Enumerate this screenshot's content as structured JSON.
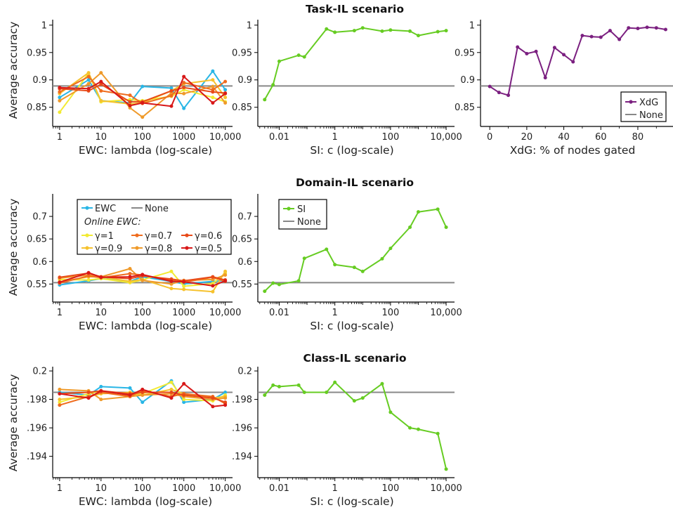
{
  "colors": {
    "EWC": "#29b6e6",
    "None": "#888888",
    "SI": "#66cc22",
    "XdG": "#7b2080",
    "gamma=1": "#f2ea32",
    "gamma=0.9": "#f6c22e",
    "gamma=0.8": "#ef9a2a",
    "gamma=0.7": "#ef6c1e",
    "gamma=0.6": "#e84a18",
    "gamma=0.5": "#d81818"
  },
  "rows": [
    {
      "title": "Task-IL scenario",
      "ylabel": "Average accuracy"
    },
    {
      "title": "Domain-IL scenario",
      "ylabel": "Average accuracy"
    },
    {
      "title": "Class-IL scenario",
      "ylabel": "Average accuracy"
    }
  ],
  "legends": {
    "ewc": {
      "ewc_label": "EWC",
      "none_label": "None",
      "online_label": "Online EWC:",
      "gammas": [
        "γ=1",
        "γ=0.7",
        "γ=0.6",
        "γ=0.9",
        "γ=0.8",
        "γ=0.5"
      ]
    },
    "si": {
      "si_label": "SI",
      "none_label": "None"
    },
    "xdg": {
      "xdg_label": "XdG",
      "none_label": "None"
    }
  },
  "chart_data": [
    {
      "id": "task-ewc",
      "type": "line",
      "xscale": "log",
      "xlabel": "EWC: lambda (log-scale)",
      "ylabel": "Average accuracy",
      "xlim": [
        0.68,
        15000
      ],
      "ylim": [
        0.815,
        1.01
      ],
      "xticks": [
        1,
        10,
        100,
        1000,
        10000
      ],
      "xticklabels": [
        "1",
        "10",
        "100",
        "1000",
        "10,000"
      ],
      "yticks": [
        0.85,
        0.9,
        0.95,
        1
      ],
      "yticklabels": [
        "0.85",
        "0.9",
        "0.95",
        "1"
      ],
      "baseline": 0.889,
      "x": [
        1,
        5,
        10,
        50,
        100,
        500,
        1000,
        5000,
        10000
      ],
      "series": [
        {
          "key": "EWC",
          "values": [
            0.868,
            0.9,
            0.862,
            0.858,
            0.888,
            0.885,
            0.848,
            0.916,
            0.882
          ]
        },
        {
          "key": "gamma=1",
          "values": [
            0.841,
            0.912,
            0.86,
            0.864,
            0.862,
            0.87,
            0.882,
            0.868,
            0.86
          ]
        },
        {
          "key": "gamma=0.9",
          "values": [
            0.875,
            0.913,
            0.862,
            0.856,
            0.858,
            0.88,
            0.893,
            0.9,
            0.868
          ]
        },
        {
          "key": "gamma=0.8",
          "values": [
            0.862,
            0.893,
            0.913,
            0.849,
            0.832,
            0.876,
            0.875,
            0.888,
            0.858
          ]
        },
        {
          "key": "gamma=0.7",
          "values": [
            0.878,
            0.906,
            0.88,
            0.872,
            0.857,
            0.871,
            0.895,
            0.882,
            0.897
          ]
        },
        {
          "key": "gamma=0.6",
          "values": [
            0.884,
            0.88,
            0.892,
            0.86,
            0.86,
            0.88,
            0.886,
            0.878,
            0.876
          ]
        },
        {
          "key": "gamma=0.5",
          "values": [
            0.886,
            0.884,
            0.897,
            0.853,
            0.858,
            0.852,
            0.906,
            0.858,
            0.875
          ]
        }
      ]
    },
    {
      "id": "task-si",
      "type": "line",
      "xscale": "log",
      "xlabel": "SI: c (log-scale)",
      "ylabel": "",
      "xlim": [
        0.0017,
        20000
      ],
      "ylim": [
        0.815,
        1.01
      ],
      "xticks": [
        0.01,
        1,
        100,
        10000
      ],
      "xticklabels": [
        "0.01",
        "1",
        "100",
        "10,000"
      ],
      "yticks": [
        0.85,
        0.9,
        0.95,
        1
      ],
      "yticklabels": [
        "0.85",
        "0.9",
        "0.95",
        "1"
      ],
      "baseline": 0.889,
      "x": [
        0.003,
        0.006,
        0.01,
        0.05,
        0.08,
        0.5,
        1,
        5,
        10,
        50,
        100,
        500,
        1000,
        5000,
        10000
      ],
      "series": [
        {
          "key": "SI",
          "values": [
            0.864,
            0.891,
            0.934,
            0.945,
            0.942,
            0.993,
            0.987,
            0.99,
            0.995,
            0.989,
            0.991,
            0.989,
            0.981,
            0.988,
            0.99
          ]
        }
      ]
    },
    {
      "id": "task-xdg",
      "type": "line",
      "xscale": "linear",
      "xlabel": "XdG: % of nodes gated",
      "ylabel": "",
      "xlim": [
        -5,
        99
      ],
      "ylim": [
        0.815,
        1.01
      ],
      "xticks": [
        0,
        20,
        40,
        60,
        80
      ],
      "xticklabels": [
        "0",
        "20",
        "40",
        "60",
        "80"
      ],
      "yticks": [
        0.85,
        0.9,
        0.95,
        1
      ],
      "yticklabels": [
        "0.85",
        "0.9",
        "0.95",
        "1"
      ],
      "baseline": 0.889,
      "x": [
        0,
        5,
        10,
        15,
        20,
        25,
        30,
        35,
        40,
        45,
        50,
        55,
        60,
        65,
        70,
        75,
        80,
        85,
        90,
        95
      ],
      "series": [
        {
          "key": "XdG",
          "values": [
            0.888,
            0.877,
            0.872,
            0.96,
            0.948,
            0.952,
            0.904,
            0.959,
            0.946,
            0.933,
            0.981,
            0.979,
            0.978,
            0.99,
            0.974,
            0.995,
            0.994,
            0.996,
            0.995,
            0.992
          ]
        }
      ]
    },
    {
      "id": "domain-ewc",
      "type": "line",
      "xscale": "log",
      "xlabel": "EWC: lambda (log-scale)",
      "ylabel": "Average accuracy",
      "xlim": [
        0.68,
        15000
      ],
      "ylim": [
        0.51,
        0.75
      ],
      "xticks": [
        1,
        10,
        100,
        1000,
        10000
      ],
      "xticklabels": [
        "1",
        "10",
        "100",
        "1000",
        "10,000"
      ],
      "yticks": [
        0.55,
        0.6,
        0.65,
        0.7
      ],
      "yticklabels": [
        "0.55",
        "0.6",
        "0.65",
        "0.7"
      ],
      "baseline": 0.553,
      "x": [
        1,
        5,
        10,
        50,
        100,
        500,
        1000,
        5000,
        10000
      ],
      "series": [
        {
          "key": "EWC",
          "values": [
            0.548,
            0.557,
            0.562,
            0.556,
            0.566,
            0.556,
            0.55,
            0.556,
            0.558
          ]
        },
        {
          "key": "gamma=1",
          "values": [
            0.56,
            0.559,
            0.562,
            0.553,
            0.559,
            0.578,
            0.545,
            0.551,
            0.574
          ]
        },
        {
          "key": "gamma=0.9",
          "values": [
            0.555,
            0.566,
            0.566,
            0.556,
            0.56,
            0.54,
            0.538,
            0.533,
            0.578
          ]
        },
        {
          "key": "gamma=0.8",
          "values": [
            0.563,
            0.57,
            0.566,
            0.584,
            0.558,
            0.55,
            0.558,
            0.56,
            0.57
          ]
        },
        {
          "key": "gamma=0.7",
          "values": [
            0.552,
            0.568,
            0.564,
            0.573,
            0.57,
            0.558,
            0.554,
            0.565,
            0.556
          ]
        },
        {
          "key": "gamma=0.6",
          "values": [
            0.565,
            0.574,
            0.566,
            0.562,
            0.568,
            0.561,
            0.557,
            0.566,
            0.559
          ]
        },
        {
          "key": "gamma=0.5",
          "values": [
            0.554,
            0.575,
            0.565,
            0.566,
            0.571,
            0.556,
            0.555,
            0.546,
            0.557
          ]
        }
      ]
    },
    {
      "id": "domain-si",
      "type": "line",
      "xscale": "log",
      "xlabel": "SI: c (log-scale)",
      "ylabel": "",
      "xlim": [
        0.0017,
        20000
      ],
      "ylim": [
        0.51,
        0.75
      ],
      "xticks": [
        0.01,
        1,
        100,
        10000
      ],
      "xticklabels": [
        "0.01",
        "1",
        "100",
        "10,000"
      ],
      "yticks": [
        0.55,
        0.6,
        0.65,
        0.7
      ],
      "yticklabels": [
        "0.55",
        "0.6",
        "0.65",
        "0.7"
      ],
      "baseline": 0.553,
      "x": [
        0.003,
        0.006,
        0.01,
        0.05,
        0.08,
        0.5,
        1,
        5,
        10,
        50,
        100,
        500,
        1000,
        5000,
        10000
      ],
      "series": [
        {
          "key": "SI",
          "values": [
            0.534,
            0.552,
            0.549,
            0.557,
            0.607,
            0.627,
            0.593,
            0.587,
            0.578,
            0.606,
            0.629,
            0.676,
            0.71,
            0.716,
            0.676
          ]
        }
      ]
    },
    {
      "id": "class-ewc",
      "type": "line",
      "xscale": "log",
      "xlabel": "EWC: lambda (log-scale)",
      "ylabel": "Average accuracy",
      "xlim": [
        0.68,
        15000
      ],
      "ylim": [
        0.1925,
        0.2003
      ],
      "xticks": [
        1,
        10,
        100,
        1000,
        10000
      ],
      "xticklabels": [
        "1",
        "10",
        "100",
        "1000",
        "10,000"
      ],
      "yticks": [
        0.194,
        0.196,
        0.198,
        0.2
      ],
      "yticklabels": [
        ".194",
        ".196",
        ".198",
        "0.2"
      ],
      "baseline": 0.1985,
      "x": [
        1,
        5,
        10,
        50,
        100,
        500,
        1000,
        5000,
        10000
      ],
      "series": [
        {
          "key": "EWC",
          "values": [
            0.1985,
            0.1983,
            0.1989,
            0.1988,
            0.1978,
            0.1993,
            0.1978,
            0.198,
            0.1985
          ]
        },
        {
          "key": "gamma=1",
          "values": [
            0.1978,
            0.1984,
            0.1986,
            0.1983,
            0.1984,
            0.1992,
            0.198,
            0.1979,
            0.1983
          ]
        },
        {
          "key": "gamma=0.9",
          "values": [
            0.198,
            0.1982,
            0.1984,
            0.1985,
            0.1983,
            0.1987,
            0.1984,
            0.1981,
            0.1982
          ]
        },
        {
          "key": "gamma=0.8",
          "values": [
            0.1987,
            0.1986,
            0.198,
            0.1982,
            0.1983,
            0.1984,
            0.1982,
            0.198,
            0.1981
          ]
        },
        {
          "key": "gamma=0.7",
          "values": [
            0.1976,
            0.1982,
            0.1985,
            0.1982,
            0.1986,
            0.1982,
            0.1984,
            0.1982,
            0.1977
          ]
        },
        {
          "key": "gamma=0.6",
          "values": [
            0.1984,
            0.1985,
            0.1986,
            0.1984,
            0.1985,
            0.1985,
            0.1983,
            0.1981,
            0.1978
          ]
        },
        {
          "key": "gamma=0.5",
          "values": [
            0.1984,
            0.1981,
            0.1986,
            0.1983,
            0.1987,
            0.1981,
            0.1991,
            0.1975,
            0.1976
          ]
        }
      ]
    },
    {
      "id": "class-si",
      "type": "line",
      "xscale": "log",
      "xlabel": "SI: c (log-scale)",
      "ylabel": "",
      "xlim": [
        0.0017,
        20000
      ],
      "ylim": [
        0.1925,
        0.2003
      ],
      "xticks": [
        0.01,
        1,
        100,
        10000
      ],
      "xticklabels": [
        "0.01",
        "1",
        "100",
        "10,000"
      ],
      "yticks": [
        0.194,
        0.196,
        0.198,
        0.2
      ],
      "yticklabels": [
        ".194",
        ".196",
        ".198",
        "0.2"
      ],
      "baseline": 0.1985,
      "x": [
        0.003,
        0.006,
        0.01,
        0.05,
        0.08,
        0.5,
        1,
        5,
        10,
        50,
        100,
        500,
        1000,
        5000,
        10000
      ],
      "series": [
        {
          "key": "SI",
          "values": [
            0.1983,
            0.199,
            0.1989,
            0.199,
            0.1985,
            0.1985,
            0.1992,
            0.1979,
            0.1981,
            0.1991,
            0.1971,
            0.196,
            0.1959,
            0.1956,
            0.1931
          ]
        }
      ]
    }
  ]
}
